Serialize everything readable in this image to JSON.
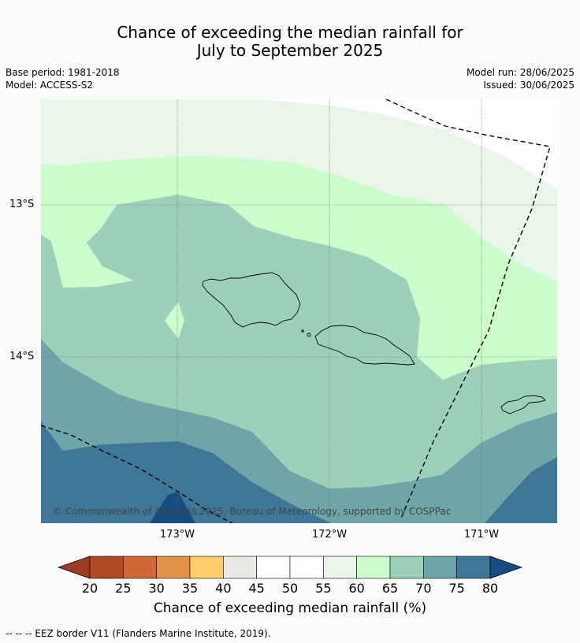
{
  "header": {
    "title_line1": "Chance of exceeding the median rainfall for",
    "title_line2": "July to September 2025",
    "base_period": "Base period: 1981-2018",
    "model": "Model: ACCESS-S2",
    "model_run": "Model run: 28/06/2025",
    "issued": "Issued: 30/06/2025"
  },
  "map": {
    "lat_labels": [
      "13°S",
      "14°S"
    ],
    "lon_labels": [
      "173°W",
      "172°W",
      "171°W"
    ],
    "copyright": "© Commonwealth of Australia 2025, Bureau of Meteorology, supported by COSPPac",
    "zone_colors": {
      "z55_60": "#eaf5ea",
      "z60_65": "#ccfccc",
      "z65_70": "#9dd0b9",
      "z70_75": "#6ea5a8",
      "z75_80": "#3f7798",
      "z80plus": "#174c80"
    }
  },
  "colorbar": {
    "ticks": [
      "20",
      "25",
      "30",
      "35",
      "40",
      "45",
      "50",
      "55",
      "60",
      "65",
      "70",
      "75",
      "80"
    ],
    "colors": [
      "#b04a26",
      "#cf6634",
      "#e39448",
      "#fdcd6a",
      "#ebe9e6",
      "#ffffff",
      "#ffffff",
      "#eaf5ea",
      "#ccfccc",
      "#9dd0b9",
      "#6ea5a8",
      "#3f7798"
    ],
    "low_extend_color": "#9b3d22",
    "high_extend_color": "#174c80",
    "label": "Chance of exceeding median rainfall (%)"
  },
  "footer": {
    "eez_note": "--  --  -- EEZ border V11 (Flanders Marine Institute, 2019)."
  }
}
